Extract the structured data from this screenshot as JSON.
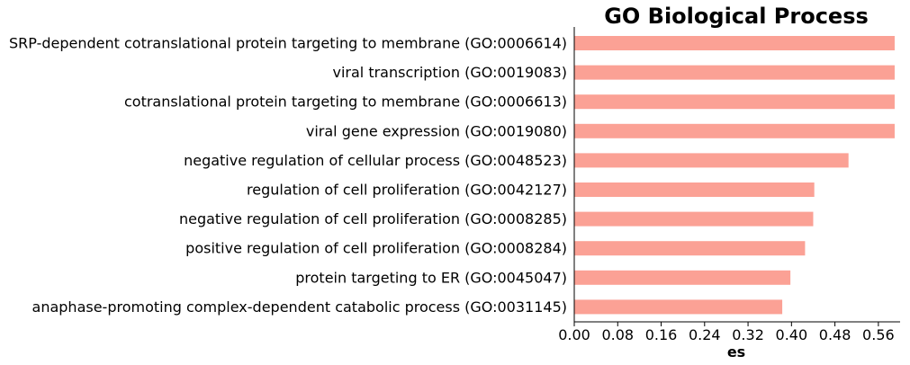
{
  "chart_data": {
    "type": "bar",
    "orientation": "horizontal",
    "title": "GO Biological Process",
    "xlabel": "es",
    "ylabel": "",
    "bar_color": "#fba195",
    "xlim": [
      0,
      0.6
    ],
    "xticks": [
      "0.00",
      "0.08",
      "0.16",
      "0.24",
      "0.32",
      "0.40",
      "0.48",
      "0.56"
    ],
    "xtick_values": [
      0,
      0.08,
      0.16,
      0.24,
      0.32,
      0.4,
      0.48,
      0.56
    ],
    "grid": false,
    "categories": [
      "SRP-dependent cotranslational protein targeting to membrane (GO:0006614)",
      "viral transcription (GO:0019083)",
      "cotranslational protein targeting to membrane (GO:0006613)",
      "viral gene expression (GO:0019080)",
      "negative regulation of cellular process (GO:0048523)",
      "regulation of cell proliferation (GO:0042127)",
      "negative regulation of cell proliferation (GO:0008285)",
      "positive regulation of cell proliferation (GO:0008284)",
      "protein targeting to ER (GO:0045047)",
      "anaphase-promoting complex-dependent catabolic process (GO:0031145)"
    ],
    "values": [
      0.59,
      0.59,
      0.59,
      0.59,
      0.505,
      0.442,
      0.44,
      0.425,
      0.398,
      0.383
    ]
  }
}
